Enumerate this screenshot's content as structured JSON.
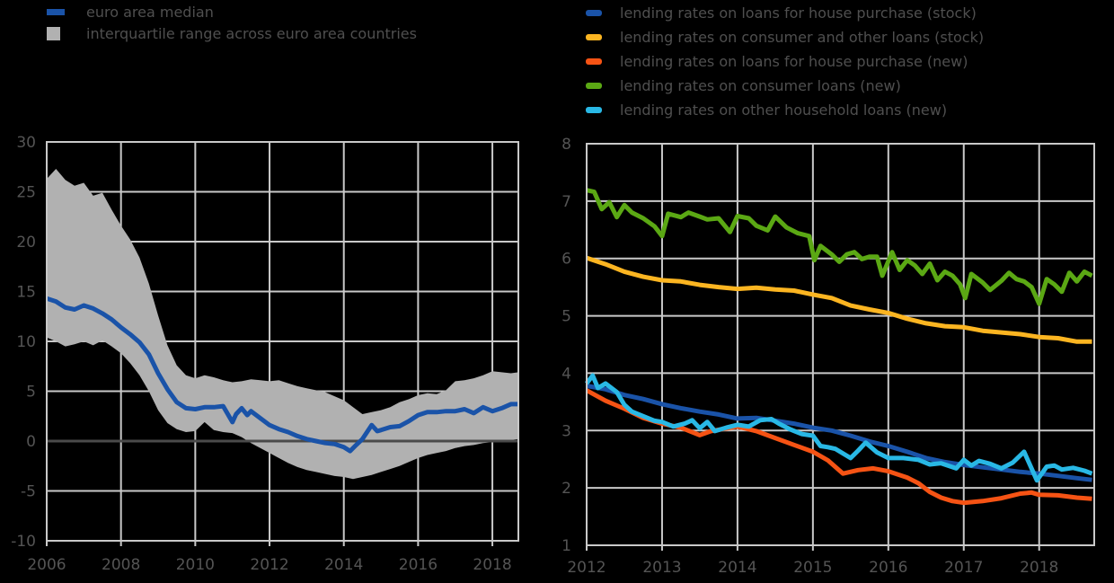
{
  "left_legend": {
    "items": [
      {
        "label": "euro area median",
        "color": "#1a53a8"
      },
      {
        "label": "interquartile range across euro area countries",
        "color": "#b1b1b1"
      }
    ]
  },
  "right_legend": {
    "items": [
      {
        "label": "lending rates on loans for house purchase (stock)",
        "color": "#1a53a8"
      },
      {
        "label": "lending rates on consumer and other loans (stock)",
        "color": "#fcb521"
      },
      {
        "label": "lending rates on loans for house purchase (new)",
        "color": "#f65314"
      },
      {
        "label": "lending rates on consumer loans (new)",
        "color": "#5ba814"
      },
      {
        "label": "lending rates on other household loans (new)",
        "color": "#29b8e5"
      }
    ]
  },
  "chart_data": [
    {
      "type": "area",
      "title": "",
      "xlabel": "",
      "ylabel": "",
      "xlim": [
        2006,
        2018.7
      ],
      "ylim": [
        -10,
        30
      ],
      "x_ticks": [
        2006,
        2008,
        2010,
        2012,
        2014,
        2016,
        2018
      ],
      "y_ticks": [
        30,
        25,
        20,
        15,
        10,
        5,
        0,
        -5,
        -10
      ],
      "x_gridlines": [
        2008,
        2010,
        2012,
        2014,
        2016,
        2018
      ],
      "y_gridlines": [
        25,
        20,
        15,
        10,
        5,
        -5
      ],
      "grid_color": "#c9c9c9",
      "zero_line_color": "#4a4a4a",
      "legend_position": "top-left",
      "series": [
        {
          "id": "interquartile-range",
          "name": "interquartile range across euro area countries",
          "type": "band",
          "color": "#b1b1b1",
          "x": [
            2006,
            2006.25,
            2006.5,
            2006.75,
            2007,
            2007.25,
            2007.5,
            2007.75,
            2008,
            2008.25,
            2008.5,
            2008.75,
            2009,
            2009.25,
            2009.5,
            2009.75,
            2010,
            2010.25,
            2010.5,
            2010.75,
            2011,
            2011.25,
            2011.5,
            2011.75,
            2012,
            2012.25,
            2012.5,
            2012.75,
            2013,
            2013.25,
            2013.5,
            2013.75,
            2014,
            2014.25,
            2014.5,
            2014.75,
            2015,
            2015.25,
            2015.5,
            2015.75,
            2016,
            2016.25,
            2016.5,
            2016.75,
            2017,
            2017.25,
            2017.5,
            2017.75,
            2018,
            2018.25,
            2018.5,
            2018.7
          ],
          "upper": [
            26.3,
            27.3,
            26.2,
            25.6,
            25.9,
            24.6,
            24.9,
            23.2,
            21.6,
            20.2,
            18.4,
            15.8,
            12.6,
            9.6,
            7.6,
            6.6,
            6.3,
            6.6,
            6.4,
            6.1,
            5.9,
            6.0,
            6.2,
            6.1,
            6.0,
            6.1,
            5.8,
            5.5,
            5.3,
            5.1,
            4.9,
            4.5,
            4.1,
            3.4,
            2.7,
            2.9,
            3.1,
            3.4,
            3.9,
            4.2,
            4.6,
            4.8,
            4.7,
            5.1,
            6.0,
            6.1,
            6.3,
            6.6,
            7.0,
            6.9,
            6.8,
            6.9
          ],
          "lower": [
            10.4,
            10.0,
            9.5,
            9.7,
            10.0,
            9.6,
            10.1,
            9.5,
            8.8,
            7.8,
            6.6,
            5.0,
            3.1,
            1.8,
            1.2,
            0.9,
            1.0,
            1.9,
            1.1,
            0.9,
            0.8,
            0.4,
            -0.2,
            -0.7,
            -1.2,
            -1.7,
            -2.2,
            -2.6,
            -2.9,
            -3.1,
            -3.3,
            -3.5,
            -3.6,
            -3.8,
            -3.6,
            -3.4,
            -3.1,
            -2.8,
            -2.5,
            -2.1,
            -1.7,
            -1.4,
            -1.2,
            -1.0,
            -0.7,
            -0.5,
            -0.4,
            -0.2,
            -0.1,
            0.0,
            0.1,
            0.2
          ]
        },
        {
          "id": "euro-area-median",
          "name": "euro area median",
          "type": "line",
          "color": "#1a53a8",
          "x": [
            2006,
            2006.25,
            2006.5,
            2006.75,
            2007,
            2007.25,
            2007.5,
            2007.75,
            2008,
            2008.25,
            2008.5,
            2008.75,
            2009,
            2009.25,
            2009.5,
            2009.75,
            2010,
            2010.25,
            2010.5,
            2010.75,
            2011,
            2011.1,
            2011.25,
            2011.4,
            2011.5,
            2011.75,
            2012,
            2012.25,
            2012.5,
            2012.75,
            2013,
            2013.25,
            2013.5,
            2013.75,
            2014,
            2014.17,
            2014.33,
            2014.5,
            2014.75,
            2014.9,
            2015,
            2015.25,
            2015.5,
            2015.75,
            2016,
            2016.25,
            2016.5,
            2016.75,
            2017,
            2017.25,
            2017.5,
            2017.75,
            2018,
            2018.25,
            2018.5,
            2018.7
          ],
          "y": [
            14.3,
            14.0,
            13.4,
            13.2,
            13.6,
            13.3,
            12.8,
            12.2,
            11.4,
            10.7,
            9.9,
            8.7,
            6.8,
            5.2,
            3.9,
            3.3,
            3.2,
            3.4,
            3.4,
            3.5,
            1.9,
            2.7,
            3.3,
            2.6,
            3.0,
            2.3,
            1.6,
            1.2,
            0.9,
            0.5,
            0.2,
            0.0,
            -0.2,
            -0.3,
            -0.6,
            -1.0,
            -0.4,
            0.2,
            1.6,
            1.0,
            1.1,
            1.4,
            1.5,
            2.0,
            2.6,
            2.9,
            2.9,
            3.0,
            3.0,
            3.2,
            2.8,
            3.4,
            3.0,
            3.3,
            3.7,
            3.7
          ]
        }
      ]
    },
    {
      "type": "line",
      "title": "",
      "xlabel": "",
      "ylabel": "",
      "xlim": [
        2012,
        2018.73
      ],
      "ylim": [
        1,
        8
      ],
      "x_ticks": [
        2012,
        2013,
        2014,
        2015,
        2016,
        2017,
        2018
      ],
      "y_ticks": [
        8,
        7,
        6,
        5,
        4,
        3,
        2,
        1
      ],
      "x_gridlines": [
        2013,
        2014,
        2015,
        2016,
        2017,
        2018
      ],
      "y_gridlines": [
        7,
        6,
        5,
        4,
        3,
        2
      ],
      "grid_color": "#c9c9c9",
      "legend_position": "top-left",
      "series": [
        {
          "id": "stock-house-purchase",
          "name": "lending rates on loans for house purchase (stock)",
          "type": "line",
          "color": "#1a53a8",
          "x": [
            2012,
            2012.25,
            2012.5,
            2012.75,
            2013,
            2013.25,
            2013.5,
            2013.75,
            2014,
            2014.25,
            2014.5,
            2014.75,
            2015,
            2015.25,
            2015.5,
            2015.75,
            2016,
            2016.25,
            2016.5,
            2016.75,
            2017,
            2017.25,
            2017.5,
            2017.75,
            2018,
            2018.25,
            2018.5,
            2018.7
          ],
          "y": [
            3.78,
            3.72,
            3.62,
            3.55,
            3.46,
            3.39,
            3.33,
            3.28,
            3.21,
            3.22,
            3.17,
            3.12,
            3.05,
            3.0,
            2.91,
            2.81,
            2.73,
            2.63,
            2.52,
            2.45,
            2.4,
            2.36,
            2.32,
            2.28,
            2.25,
            2.21,
            2.17,
            2.14
          ]
        },
        {
          "id": "stock-consumer-other",
          "name": "lending rates on consumer and other loans (stock)",
          "type": "line",
          "color": "#fcb521",
          "x": [
            2012,
            2012.25,
            2012.5,
            2012.75,
            2013,
            2013.25,
            2013.5,
            2013.75,
            2014,
            2014.25,
            2014.5,
            2014.75,
            2015,
            2015.25,
            2015.5,
            2015.75,
            2016,
            2016.25,
            2016.5,
            2016.75,
            2017,
            2017.25,
            2017.5,
            2017.75,
            2018,
            2018.25,
            2018.5,
            2018.7
          ],
          "y": [
            6.01,
            5.9,
            5.77,
            5.68,
            5.62,
            5.6,
            5.54,
            5.5,
            5.47,
            5.49,
            5.46,
            5.44,
            5.37,
            5.31,
            5.18,
            5.11,
            5.05,
            4.95,
            4.87,
            4.82,
            4.8,
            4.74,
            4.71,
            4.68,
            4.63,
            4.61,
            4.55,
            4.55
          ]
        },
        {
          "id": "new-house-purchase",
          "name": "lending rates on loans for house purchase (new)",
          "type": "line",
          "color": "#f65314",
          "x": [
            2012,
            2012.25,
            2012.5,
            2012.75,
            2013,
            2013.25,
            2013.5,
            2013.65,
            2014,
            2014.25,
            2014.5,
            2014.75,
            2015,
            2015.2,
            2015.4,
            2015.6,
            2015.8,
            2016,
            2016.25,
            2016.4,
            2016.55,
            2016.7,
            2016.85,
            2017,
            2017.25,
            2017.5,
            2017.75,
            2017.9,
            2018,
            2018.25,
            2018.5,
            2018.7
          ],
          "y": [
            3.7,
            3.52,
            3.38,
            3.22,
            3.12,
            3.05,
            2.92,
            2.99,
            3.07,
            2.99,
            2.87,
            2.75,
            2.63,
            2.48,
            2.25,
            2.31,
            2.34,
            2.29,
            2.18,
            2.08,
            1.93,
            1.83,
            1.77,
            1.74,
            1.77,
            1.82,
            1.9,
            1.92,
            1.88,
            1.87,
            1.83,
            1.81
          ]
        },
        {
          "id": "new-consumer",
          "name": "lending rates on consumer loans (new)",
          "type": "line",
          "color": "#5ba814",
          "x": [
            2012,
            2012.1,
            2012.2,
            2012.3,
            2012.4,
            2012.5,
            2012.6,
            2012.75,
            2012.9,
            2013,
            2013.08,
            2013.25,
            2013.35,
            2013.5,
            2013.6,
            2013.75,
            2013.9,
            2014,
            2014.15,
            2014.25,
            2014.4,
            2014.5,
            2014.65,
            2014.8,
            2014.95,
            2015.02,
            2015.1,
            2015.25,
            2015.35,
            2015.45,
            2015.55,
            2015.65,
            2015.75,
            2015.85,
            2015.92,
            2016.05,
            2016.15,
            2016.25,
            2016.35,
            2016.45,
            2016.55,
            2016.65,
            2016.75,
            2016.85,
            2016.95,
            2017.02,
            2017.1,
            2017.25,
            2017.35,
            2017.5,
            2017.6,
            2017.7,
            2017.8,
            2017.9,
            2018,
            2018.1,
            2018.2,
            2018.3,
            2018.4,
            2018.5,
            2018.6,
            2018.7
          ],
          "y": [
            7.19,
            7.16,
            6.86,
            6.98,
            6.72,
            6.93,
            6.8,
            6.7,
            6.56,
            6.39,
            6.78,
            6.72,
            6.8,
            6.73,
            6.68,
            6.7,
            6.46,
            6.74,
            6.7,
            6.57,
            6.49,
            6.73,
            6.54,
            6.44,
            6.39,
            5.97,
            6.22,
            6.07,
            5.94,
            6.07,
            6.11,
            5.99,
            6.03,
            6.03,
            5.7,
            6.11,
            5.8,
            5.97,
            5.88,
            5.73,
            5.91,
            5.62,
            5.77,
            5.7,
            5.55,
            5.31,
            5.73,
            5.58,
            5.45,
            5.61,
            5.75,
            5.64,
            5.6,
            5.5,
            5.21,
            5.64,
            5.55,
            5.42,
            5.75,
            5.6,
            5.77,
            5.7
          ]
        },
        {
          "id": "new-other-household",
          "name": "lending rates on other household loans (new)",
          "type": "line",
          "color": "#29b8e5",
          "x": [
            2012,
            2012.08,
            2012.15,
            2012.25,
            2012.4,
            2012.5,
            2012.6,
            2012.75,
            2012.9,
            2013,
            2013.15,
            2013.3,
            2013.4,
            2013.5,
            2013.6,
            2013.7,
            2013.85,
            2014,
            2014.15,
            2014.3,
            2014.45,
            2014.55,
            2014.7,
            2014.85,
            2015,
            2015.1,
            2015.2,
            2015.3,
            2015.5,
            2015.6,
            2015.7,
            2015.85,
            2016,
            2016.2,
            2016.4,
            2016.55,
            2016.7,
            2016.9,
            2017,
            2017.1,
            2017.2,
            2017.35,
            2017.5,
            2017.65,
            2017.8,
            2017.97,
            2018.1,
            2018.2,
            2018.3,
            2018.45,
            2018.6,
            2018.7
          ],
          "y": [
            3.82,
            3.96,
            3.74,
            3.82,
            3.67,
            3.45,
            3.33,
            3.25,
            3.17,
            3.15,
            3.07,
            3.12,
            3.18,
            3.04,
            3.15,
            2.99,
            3.05,
            3.1,
            3.07,
            3.18,
            3.2,
            3.12,
            3.02,
            2.94,
            2.91,
            2.73,
            2.71,
            2.68,
            2.52,
            2.65,
            2.79,
            2.62,
            2.52,
            2.52,
            2.49,
            2.41,
            2.43,
            2.34,
            2.49,
            2.39,
            2.47,
            2.42,
            2.34,
            2.44,
            2.63,
            2.13,
            2.37,
            2.39,
            2.32,
            2.35,
            2.3,
            2.25
          ]
        }
      ]
    }
  ]
}
